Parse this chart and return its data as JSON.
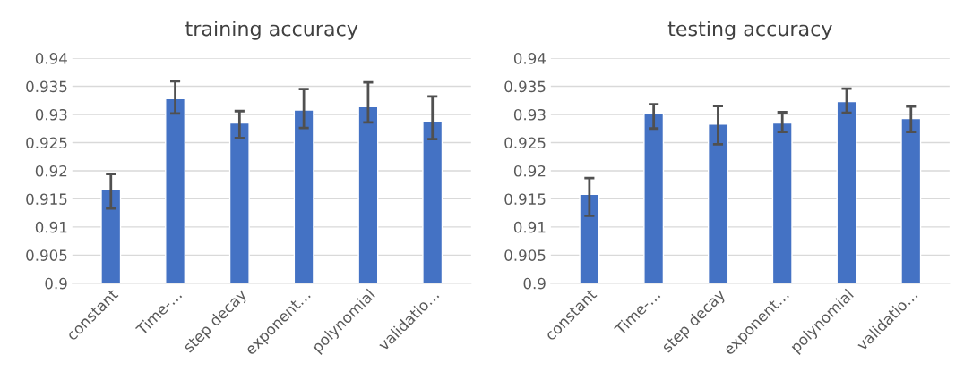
{
  "chart_data": [
    {
      "type": "bar",
      "title": "training accuracy",
      "categories": [
        "constant",
        "Time-…",
        "step decay",
        "exponent…",
        "polynomial",
        "validatio…"
      ],
      "values": [
        0.9167,
        0.9328,
        0.9285,
        0.9308,
        0.9314,
        0.9287
      ],
      "errors": [
        [
          0.9133,
          0.9194
        ],
        [
          0.9302,
          0.9359
        ],
        [
          0.9258,
          0.9306
        ],
        [
          0.9276,
          0.9345
        ],
        [
          0.9286,
          0.9357
        ],
        [
          0.9256,
          0.9332
        ]
      ],
      "color": "#4472c4",
      "ylim": [
        0.9,
        0.94
      ],
      "yticks": [
        0.9,
        0.905,
        0.91,
        0.915,
        0.92,
        0.925,
        0.93,
        0.935,
        0.94
      ],
      "grid": "y"
    },
    {
      "type": "bar",
      "title": "testing accuracy",
      "categories": [
        "constant",
        "Time-…",
        "step decay",
        "exponent…",
        "polynomial",
        "validatio…"
      ],
      "values": [
        0.9158,
        0.9302,
        0.9283,
        0.9285,
        0.9323,
        0.9293
      ],
      "errors": [
        [
          0.912,
          0.9187
        ],
        [
          0.9275,
          0.9318
        ],
        [
          0.9247,
          0.9315
        ],
        [
          0.9269,
          0.9304
        ],
        [
          0.9303,
          0.9346
        ],
        [
          0.9269,
          0.9314
        ]
      ],
      "color": "#4472c4",
      "ylim": [
        0.9,
        0.94
      ],
      "yticks": [
        0.9,
        0.905,
        0.91,
        0.915,
        0.92,
        0.925,
        0.93,
        0.935,
        0.94
      ],
      "grid": "y"
    }
  ]
}
